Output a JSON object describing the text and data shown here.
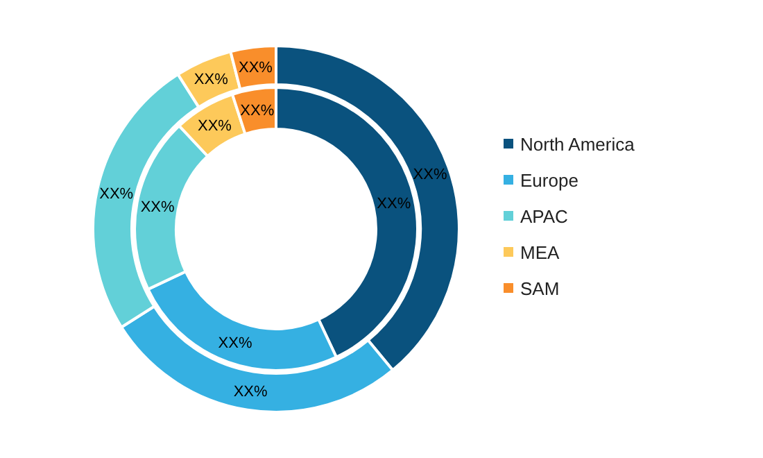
{
  "chart_data": {
    "type": "donut",
    "categories": [
      "North America",
      "Europe",
      "APAC",
      "MEA",
      "SAM"
    ],
    "colors": [
      "#0a527e",
      "#35b0e2",
      "#62d0d8",
      "#fdc95a",
      "#f98e2b"
    ],
    "legend": "right",
    "series": [
      {
        "values": [
          39,
          27,
          25,
          5,
          4
        ],
        "value_labels": [
          "XX%",
          "XX%",
          "XX%",
          "XX%",
          "XX%"
        ]
      },
      {
        "values": [
          43,
          25,
          20,
          7,
          5
        ],
        "value_labels": [
          "XX%",
          "XX%",
          "XX%",
          "XX%",
          "XX%"
        ]
      }
    ]
  }
}
